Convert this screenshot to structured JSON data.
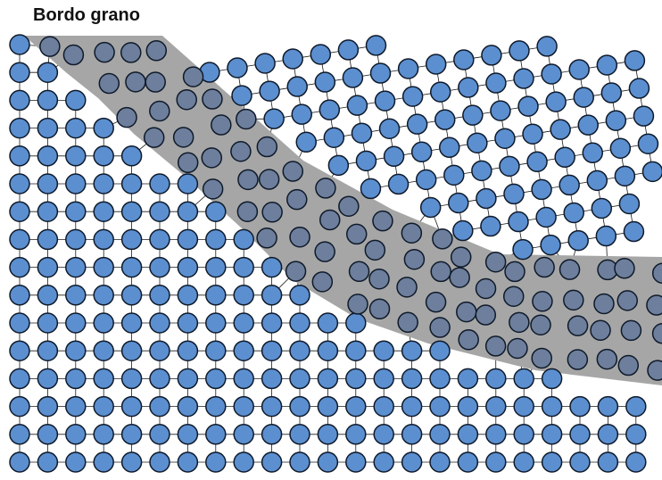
{
  "title": "Bordo grano",
  "colors": {
    "atom_fill": "#5b8fd0",
    "atom_stroke": "#0f1a2a",
    "bond": "#1a1a1a",
    "boundary_band": "#a6a6a6",
    "boundary_atom_fill": "#6d7f9c"
  }
}
